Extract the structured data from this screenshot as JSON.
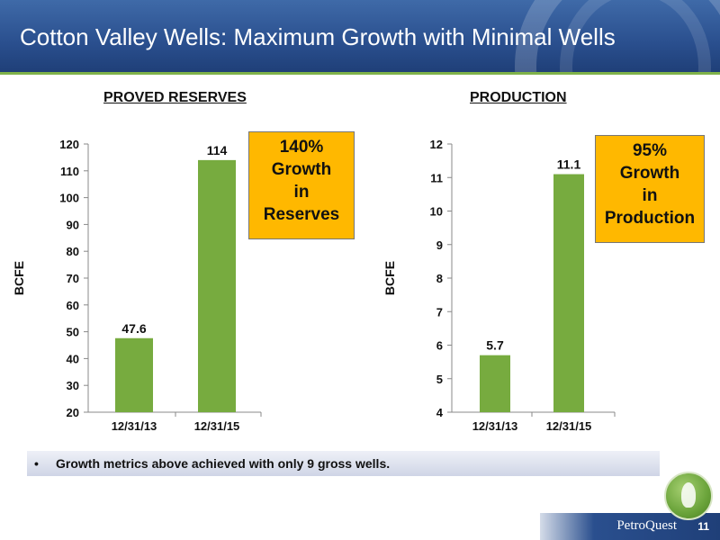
{
  "header": {
    "title": "Cotton Valley Wells: Maximum Growth with Minimal Wells"
  },
  "colors": {
    "bar": "#77ab3f",
    "callout": "#ffb800",
    "header": "#2a4f8e",
    "rule": "#7fb24a"
  },
  "chart_data": [
    {
      "type": "bar",
      "title": "PROVED RESERVES",
      "ylabel": "BCFE",
      "xlabel": "",
      "categories": [
        "12/31/13",
        "12/31/15"
      ],
      "values": [
        47.6,
        114
      ],
      "value_labels": [
        "47.6",
        "114"
      ],
      "ylim": [
        20,
        120
      ],
      "yticks": [
        20,
        30,
        40,
        50,
        60,
        70,
        80,
        90,
        100,
        110,
        120
      ],
      "grid": false,
      "callout": [
        "140%",
        "Growth",
        "in",
        "Reserves"
      ]
    },
    {
      "type": "bar",
      "title": "PRODUCTION",
      "ylabel": "BCFE",
      "xlabel": "",
      "categories": [
        "12/31/13",
        "12/31/15"
      ],
      "values": [
        5.7,
        11.1
      ],
      "value_labels": [
        "5.7",
        "11.1"
      ],
      "ylim": [
        4,
        12
      ],
      "yticks": [
        4,
        5,
        6,
        7,
        8,
        9,
        10,
        11,
        12
      ],
      "grid": false,
      "callout": [
        "95%",
        "Growth",
        "in",
        "Production"
      ]
    }
  ],
  "note": {
    "bullet": "•",
    "text": "Growth metrics above achieved with only 9 gross wells."
  },
  "footer": {
    "brand": "PetroQuest",
    "page": "11"
  }
}
